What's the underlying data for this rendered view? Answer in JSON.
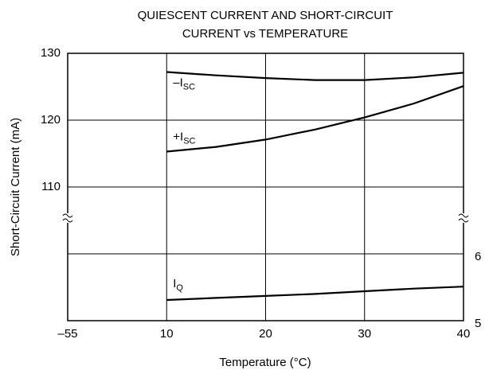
{
  "chart_data": {
    "type": "line",
    "title": [
      "QUIESCENT CURRENT AND SHORT-CIRCUIT",
      "CURRENT vs TEMPERATURE"
    ],
    "xlabel": "Temperature (°C)",
    "ylabel": "Short-Circuit Current (mA)",
    "x": [
      10,
      15,
      20,
      25,
      30,
      35,
      40
    ],
    "xticks": [
      {
        "value": -55,
        "label": "–55"
      },
      10,
      20,
      30,
      40
    ],
    "ylim": [
      90,
      130
    ],
    "yticks": [
      110,
      120,
      130
    ],
    "y2lim": [
      5,
      9
    ],
    "y2ticks": [
      5,
      6
    ],
    "grid": true,
    "series": [
      {
        "name": "–I",
        "sub": "SC",
        "color": "#000000",
        "values": [
          127.2,
          126.7,
          126.3,
          126.0,
          126.0,
          126.4,
          127.1
        ]
      },
      {
        "name": "+I",
        "sub": "SC",
        "color": "#000000",
        "values": [
          115.3,
          116.0,
          117.1,
          118.6,
          120.4,
          122.5,
          125.1
        ]
      },
      {
        "name": "I",
        "sub": "Q",
        "color": "#000000",
        "axis": "y2",
        "values": [
          5.31,
          5.34,
          5.37,
          5.4,
          5.44,
          5.48,
          5.51
        ]
      }
    ]
  }
}
